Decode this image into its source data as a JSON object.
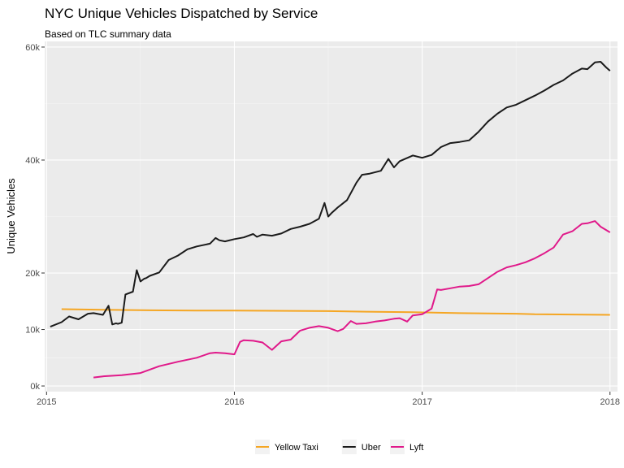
{
  "chart_data": {
    "type": "line",
    "title": "NYC Unique Vehicles Dispatched by Service",
    "subtitle": "Based on TLC summary data",
    "xlabel": "",
    "ylabel": "Unique Vehicles",
    "xlim": [
      2014.99,
      2018.04
    ],
    "ylim": [
      -1000,
      61000
    ],
    "x_ticks": [
      2015,
      2016,
      2017,
      2018
    ],
    "x_tick_labels": [
      "2015",
      "2016",
      "2017",
      "2018"
    ],
    "y_ticks": [
      0,
      10000,
      40000,
      60000
    ],
    "y_tick_labels": [
      "0k",
      "10k",
      "40k",
      "60k"
    ],
    "minor_y_ticks": [
      5000,
      20000,
      30000,
      50000
    ],
    "extra_y_ticks": [
      20000
    ],
    "extra_y_tick_labels": [
      "20k"
    ],
    "grid": true,
    "legend_position": "bottom",
    "series": [
      {
        "name": "Yellow Taxi",
        "color": "#F5A623",
        "x": [
          2015.08,
          2015.3,
          2015.55,
          2015.8,
          2016.0,
          2016.3,
          2016.5,
          2016.7,
          2016.95,
          2017.2,
          2017.5,
          2017.6,
          2017.8,
          2018.0
        ],
        "y": [
          13600,
          13500,
          13400,
          13350,
          13350,
          13300,
          13250,
          13150,
          13050,
          12900,
          12800,
          12700,
          12650,
          12600
        ]
      },
      {
        "name": "Uber",
        "color": "#1a1a1a",
        "x": [
          2015.02,
          2015.08,
          2015.12,
          2015.17,
          2015.22,
          2015.25,
          2015.3,
          2015.33,
          2015.35,
          2015.37,
          2015.38,
          2015.4,
          2015.42,
          2015.46,
          2015.48,
          2015.5,
          2015.52,
          2015.53,
          2015.55,
          2015.6,
          2015.65,
          2015.7,
          2015.75,
          2015.8,
          2015.87,
          2015.9,
          2015.92,
          2015.95,
          2016.0,
          2016.05,
          2016.1,
          2016.12,
          2016.15,
          2016.2,
          2016.25,
          2016.3,
          2016.35,
          2016.4,
          2016.45,
          2016.48,
          2016.5,
          2016.52,
          2016.55,
          2016.6,
          2016.65,
          2016.68,
          2016.72,
          2016.78,
          2016.82,
          2016.85,
          2016.88,
          2016.95,
          2017.0,
          2017.05,
          2017.1,
          2017.15,
          2017.2,
          2017.25,
          2017.3,
          2017.35,
          2017.4,
          2017.45,
          2017.5,
          2017.55,
          2017.6,
          2017.65,
          2017.7,
          2017.75,
          2017.8,
          2017.85,
          2017.88,
          2017.92,
          2017.95,
          2017.98,
          2018.0
        ],
        "y": [
          10500,
          11300,
          12300,
          11800,
          12800,
          12900,
          12600,
          14200,
          10900,
          11100,
          11000,
          11200,
          16200,
          16700,
          20500,
          18500,
          19000,
          19100,
          19500,
          20100,
          22300,
          23100,
          24200,
          24700,
          25200,
          26200,
          25800,
          25600,
          26000,
          26300,
          26900,
          26400,
          26800,
          26600,
          27000,
          27800,
          28200,
          28700,
          29600,
          32400,
          30000,
          30700,
          31600,
          32900,
          36000,
          37400,
          37600,
          38100,
          40200,
          38700,
          39800,
          40800,
          40400,
          40900,
          42300,
          43000,
          43200,
          43500,
          45000,
          46800,
          48200,
          49300,
          49800,
          50600,
          51400,
          52300,
          53300,
          54100,
          55300,
          56200,
          56100,
          57300,
          57400,
          56400,
          55800
        ]
      },
      {
        "name": "Lyft",
        "color": "#E0198A",
        "x": [
          2015.25,
          2015.3,
          2015.4,
          2015.5,
          2015.6,
          2015.7,
          2015.8,
          2015.87,
          2015.9,
          2015.95,
          2016.0,
          2016.03,
          2016.05,
          2016.1,
          2016.15,
          2016.2,
          2016.25,
          2016.3,
          2016.35,
          2016.4,
          2016.45,
          2016.5,
          2016.55,
          2016.58,
          2016.62,
          2016.65,
          2016.7,
          2016.75,
          2016.8,
          2016.85,
          2016.88,
          2016.92,
          2016.95,
          2017.0,
          2017.05,
          2017.08,
          2017.1,
          2017.15,
          2017.2,
          2017.25,
          2017.3,
          2017.35,
          2017.4,
          2017.45,
          2017.5,
          2017.55,
          2017.6,
          2017.65,
          2017.7,
          2017.75,
          2017.8,
          2017.85,
          2017.88,
          2017.92,
          2017.95,
          2018.0
        ],
        "y": [
          1500,
          1700,
          1900,
          2300,
          3500,
          4300,
          5000,
          5800,
          5900,
          5800,
          5600,
          7800,
          8100,
          8000,
          7700,
          6400,
          7900,
          8200,
          9800,
          10300,
          10600,
          10300,
          9700,
          10100,
          11500,
          11000,
          11100,
          11400,
          11600,
          11900,
          12000,
          11400,
          12500,
          12700,
          13700,
          17100,
          17000,
          17300,
          17600,
          17700,
          18000,
          19100,
          20200,
          21000,
          21400,
          21900,
          22600,
          23500,
          24500,
          26800,
          27400,
          28700,
          28800,
          29200,
          28200,
          27200
        ]
      }
    ]
  }
}
